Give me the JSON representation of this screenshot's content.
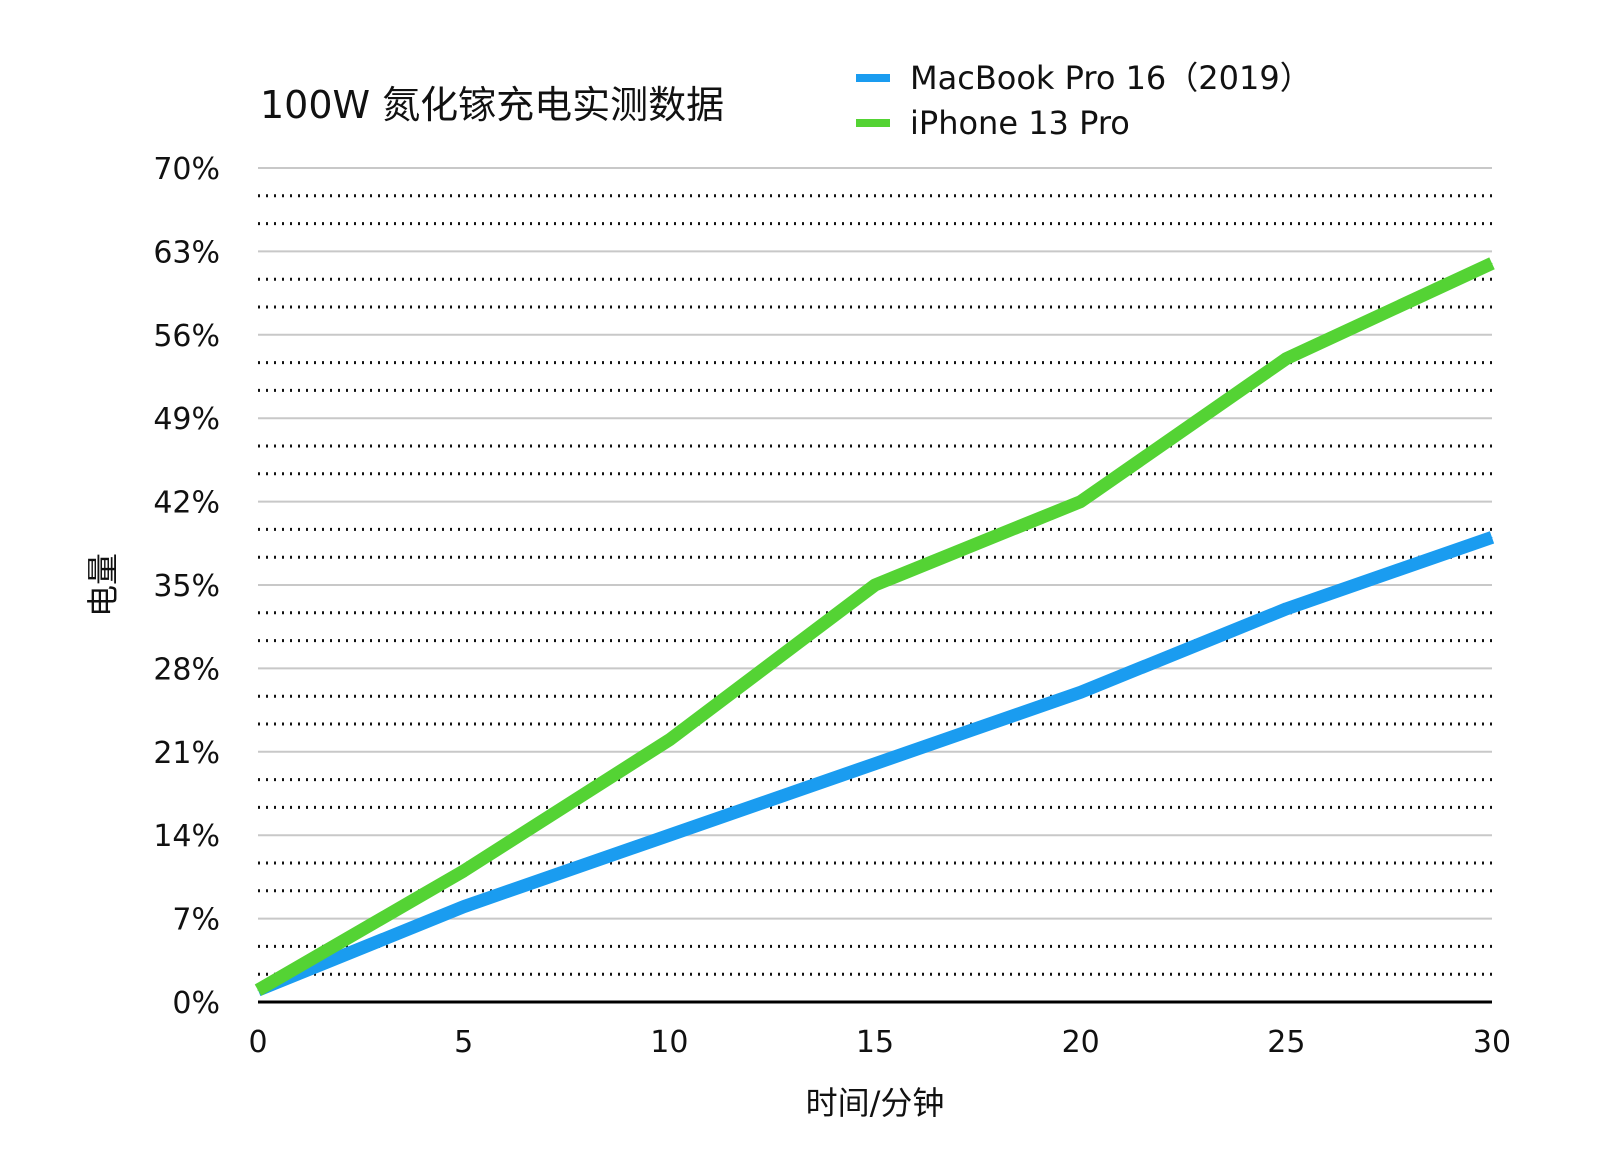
{
  "chart_data": {
    "type": "line",
    "title": "100W 氮化镓充电实测数据",
    "xlabel": "时间/分钟",
    "ylabel": "电量",
    "x": [
      0,
      5,
      10,
      15,
      20,
      25,
      30
    ],
    "xticks": [
      "0",
      "5",
      "10",
      "15",
      "20",
      "25",
      "30"
    ],
    "xlim": [
      0,
      30
    ],
    "ylim": [
      0,
      70
    ],
    "yticks": [
      0,
      7,
      14,
      21,
      28,
      35,
      42,
      49,
      56,
      63,
      70
    ],
    "ytick_labels": [
      "0%",
      "7%",
      "14%",
      "21%",
      "28%",
      "35%",
      "42%",
      "49%",
      "56%",
      "63%",
      "70%"
    ],
    "grid": "major solid, minor dotted",
    "legend_position": "top",
    "series": [
      {
        "name": "MacBook Pro 16（2019）",
        "color": "#1a9cf0",
        "values": [
          1,
          8,
          14,
          20,
          26,
          33,
          39
        ]
      },
      {
        "name": "iPhone 13 Pro",
        "color": "#54d334",
        "values": [
          1,
          11,
          22,
          35,
          42,
          54,
          62
        ]
      }
    ]
  }
}
